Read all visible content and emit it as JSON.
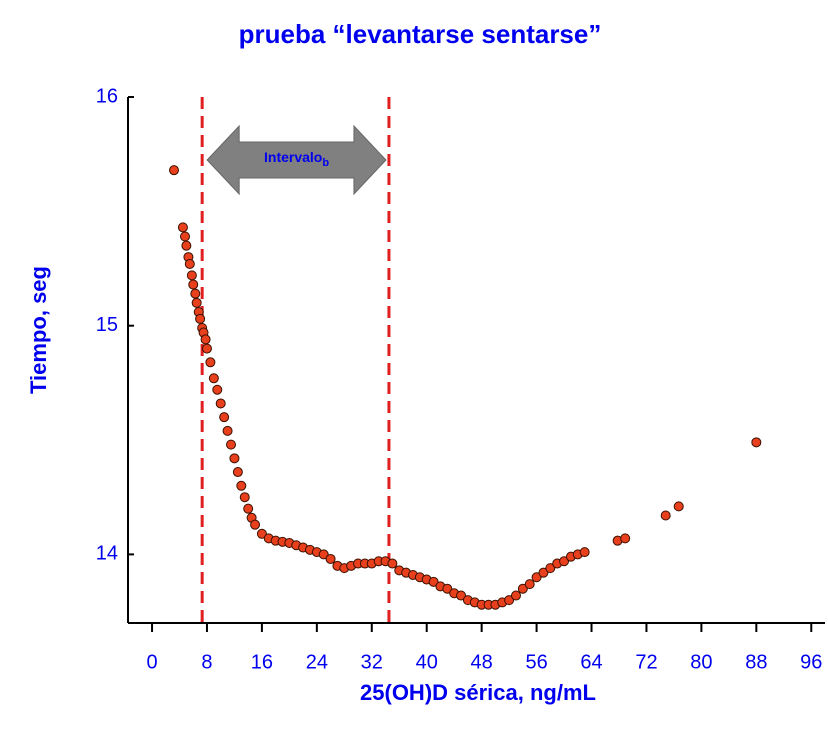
{
  "chart_data": {
    "type": "scatter",
    "title": "prueba “levantarse sentarse”",
    "x_label": "25(OH)D sérica, ng/mL",
    "y_label": "Tiempo, seg",
    "annotation": {
      "text": "Intervalo",
      "subscript": "b"
    },
    "vlines": [
      7.3,
      34.5
    ],
    "color": "#e8401c",
    "xlim": [
      -3.5,
      98
    ],
    "xticks": [
      0,
      8,
      16,
      24,
      32,
      40,
      48,
      56,
      64,
      72,
      80,
      88,
      96
    ],
    "ylim": [
      13.7,
      16
    ],
    "yticks": [
      14,
      15,
      16
    ],
    "x": [
      3.2,
      4.5,
      4.8,
      5,
      5.3,
      5.5,
      5.8,
      6,
      6.3,
      6.5,
      6.8,
      7,
      7.3,
      7.5,
      7.8,
      8,
      8.5,
      9,
      9.5,
      10,
      10.5,
      11,
      11.5,
      12,
      12.5,
      13,
      13.5,
      14,
      14.5,
      15,
      16,
      17,
      18,
      19,
      20,
      21,
      22,
      23,
      24,
      25,
      26,
      27,
      28,
      29,
      30,
      31,
      32,
      33,
      34,
      35,
      36,
      37,
      38,
      39,
      40,
      41,
      42,
      43,
      44,
      45,
      46,
      47,
      48,
      49,
      50,
      51,
      52,
      53,
      54,
      55,
      56,
      57,
      58,
      59,
      60,
      61,
      62,
      63,
      67.8,
      68.9,
      74.8,
      76.7,
      88
    ],
    "y": [
      15.68,
      15.43,
      15.39,
      15.35,
      15.3,
      15.27,
      15.22,
      15.18,
      15.14,
      15.1,
      15.06,
      15.03,
      14.99,
      14.97,
      14.94,
      14.9,
      14.84,
      14.77,
      14.72,
      14.66,
      14.6,
      14.54,
      14.48,
      14.42,
      14.36,
      14.3,
      14.25,
      14.2,
      14.16,
      14.13,
      14.09,
      14.07,
      14.06,
      14.055,
      14.05,
      14.04,
      14.03,
      14.02,
      14.01,
      14.0,
      13.98,
      13.95,
      13.94,
      13.95,
      13.96,
      13.96,
      13.96,
      13.97,
      13.97,
      13.96,
      13.93,
      13.92,
      13.91,
      13.9,
      13.89,
      13.88,
      13.86,
      13.85,
      13.83,
      13.82,
      13.8,
      13.79,
      13.78,
      13.78,
      13.78,
      13.79,
      13.8,
      13.82,
      13.85,
      13.87,
      13.9,
      13.92,
      13.94,
      13.96,
      13.97,
      13.99,
      14.0,
      14.01,
      14.06,
      14.07,
      14.17,
      14.21,
      14.49
    ]
  }
}
